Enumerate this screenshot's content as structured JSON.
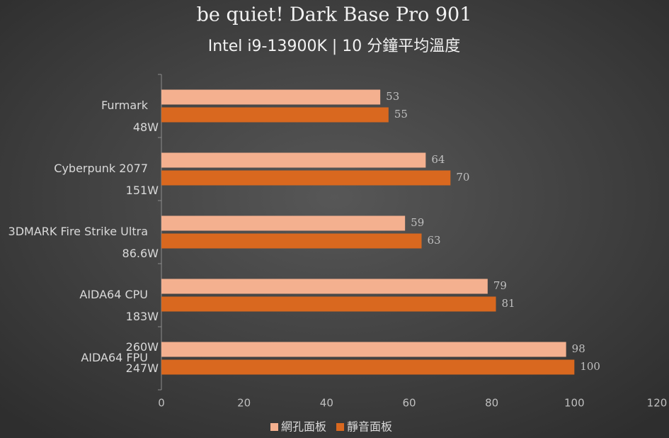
{
  "chart_data": {
    "type": "barh",
    "title": "be quiet! Dark Base Pro 901",
    "subtitle": "Intel i9-13900K | 10 分鐘平均溫度",
    "categories": [
      "Furmark",
      "Cyberpunk 2077",
      "3DMARK Fire Strike Ultra",
      "AIDA64 CPU",
      "AIDA64 FPU"
    ],
    "power_labels": [
      [
        "48W"
      ],
      [
        "151W"
      ],
      [
        "86.6W"
      ],
      [
        "183W"
      ],
      [
        "260W",
        "247W"
      ]
    ],
    "series": [
      {
        "name": "網孔面板",
        "color": "#f4b08f",
        "values": [
          53,
          64,
          59,
          79,
          98
        ]
      },
      {
        "name": "靜音面板",
        "color": "#d9681f",
        "values": [
          55,
          70,
          63,
          81,
          100
        ]
      }
    ],
    "xlim": [
      0,
      120
    ],
    "xticks": [
      0,
      20,
      40,
      60,
      80,
      100,
      120
    ],
    "legend": "bottom"
  }
}
